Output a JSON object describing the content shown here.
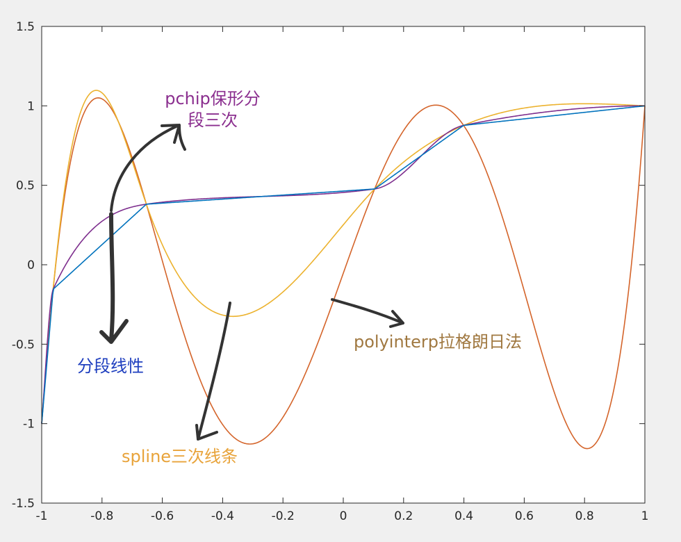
{
  "chart_data": {
    "type": "line",
    "xlim": [
      -1,
      1
    ],
    "ylim": [
      -1.5,
      1.5
    ],
    "x_ticks": [
      -1,
      -0.8,
      -0.6,
      -0.4,
      -0.2,
      0,
      0.2,
      0.4,
      0.6,
      0.8,
      1
    ],
    "x_tick_labels": [
      "-1",
      "-0.8",
      "-0.6",
      "-0.4",
      "-0.2",
      "0",
      "0.2",
      "0.4",
      "0.6",
      "0.8",
      "1"
    ],
    "y_ticks": [
      -1.5,
      -1,
      -0.5,
      0,
      0.5,
      1,
      1.5
    ],
    "y_tick_labels": [
      "-1.5",
      "-1",
      "-0.5",
      "0",
      "0.5",
      "1",
      "1.5"
    ],
    "grid": false,
    "nodes": {
      "x": [
        -1,
        -0.962,
        -0.653,
        0.104,
        0.399,
        1
      ],
      "y": [
        -1,
        -0.154,
        0.381,
        0.477,
        0.877,
        1
      ]
    },
    "series": [
      {
        "name": "polyinterp拉格朗日法",
        "color": "#d4642a",
        "kind": "polynomial"
      },
      {
        "name": "spline三次线条",
        "color": "#ecb22e",
        "kind": "natural_cubic_spline"
      },
      {
        "name": "pchip保形分段三次",
        "color": "#7e2f8e",
        "kind": "pchip"
      },
      {
        "name": "分段线性",
        "color": "#0072bd",
        "kind": "linear"
      }
    ],
    "annotations": [
      {
        "id": "pchip",
        "lines": [
          "pchip保形分",
          "段三次"
        ],
        "color": "#8b2f8f"
      },
      {
        "id": "linear",
        "lines": [
          "分段线性"
        ],
        "color": "#1f3fbf"
      },
      {
        "id": "spline",
        "lines": [
          "spline三次线条"
        ],
        "color": "#e8a33a"
      },
      {
        "id": "polyinterp",
        "lines": [
          "polyinterp拉格朗日法"
        ],
        "color": "#a07840"
      }
    ],
    "arrow_color": "#333333"
  }
}
